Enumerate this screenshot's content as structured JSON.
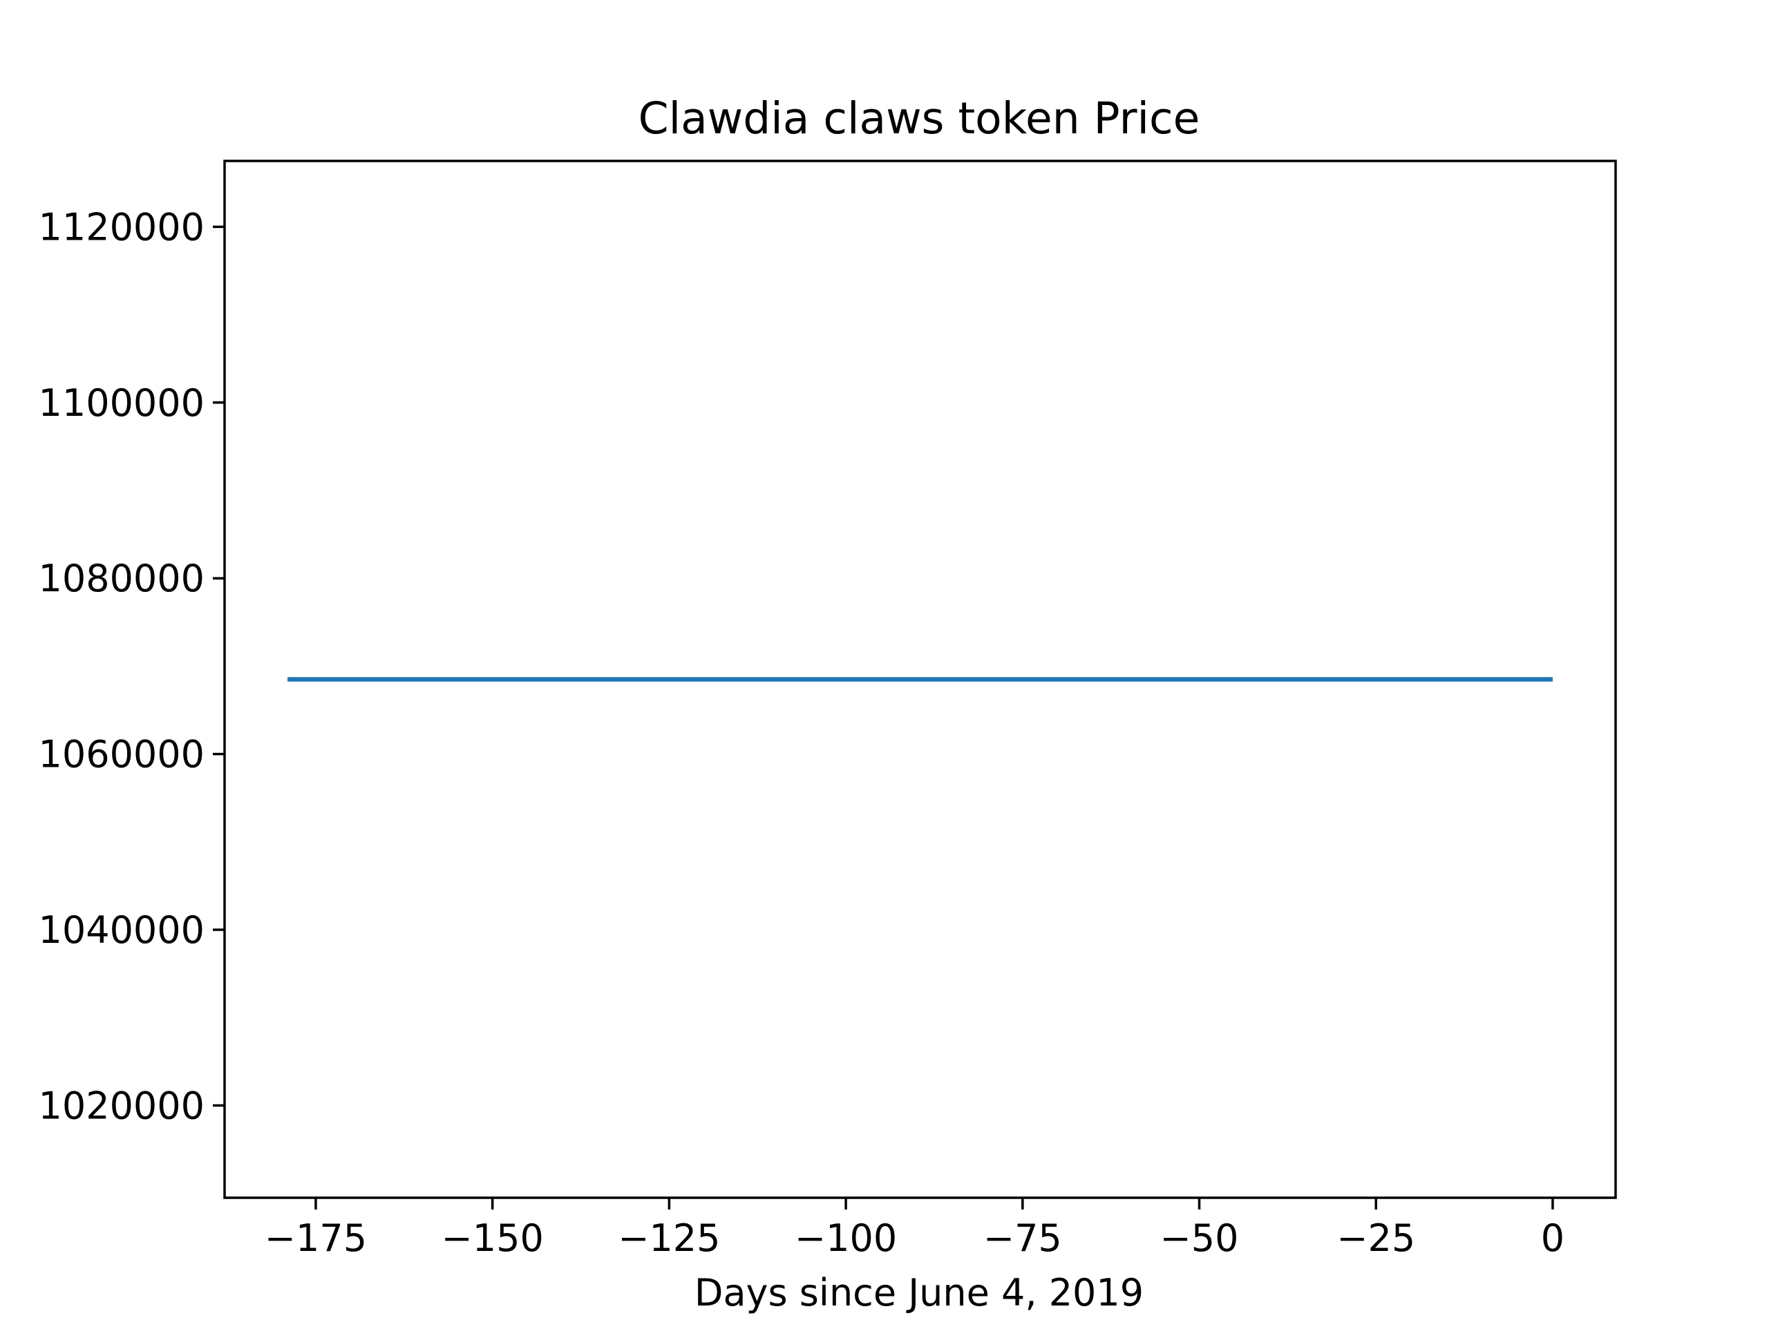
{
  "chart_data": {
    "type": "line",
    "title": "Clawdia claws token Price",
    "xlabel": "Days since June 4, 2019",
    "ylabel": "",
    "xlim": [
      -187.9,
      8.9
    ],
    "ylim": [
      1009500,
      1127500
    ],
    "xticks": [
      {
        "value": -175,
        "label": "−175"
      },
      {
        "value": -150,
        "label": "−150"
      },
      {
        "value": -125,
        "label": "−125"
      },
      {
        "value": -100,
        "label": "−100"
      },
      {
        "value": -75,
        "label": "−75"
      },
      {
        "value": -50,
        "label": "−50"
      },
      {
        "value": -25,
        "label": "−25"
      },
      {
        "value": 0,
        "label": "0"
      }
    ],
    "yticks": [
      {
        "value": 1020000,
        "label": "1020000"
      },
      {
        "value": 1040000,
        "label": "1040000"
      },
      {
        "value": 1060000,
        "label": "1060000"
      },
      {
        "value": 1080000,
        "label": "1080000"
      },
      {
        "value": 1100000,
        "label": "1100000"
      },
      {
        "value": 1120000,
        "label": "1120000"
      }
    ],
    "grid": false,
    "legend": "none",
    "series": [
      {
        "color": "#1f77b4",
        "x": [
          -179,
          0
        ],
        "y": [
          1068500,
          1068500
        ]
      }
    ]
  }
}
